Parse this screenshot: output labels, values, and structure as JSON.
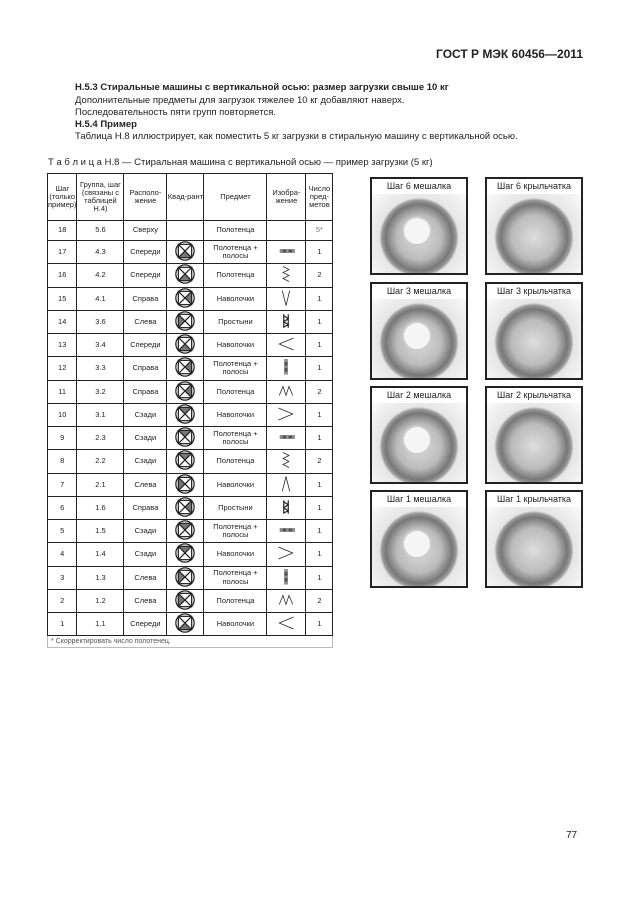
{
  "header": "ГОСТ Р МЭК 60456—2011",
  "body": {
    "h1": "Н.5.3 Стиральные машины с вертикальной осью: размер загрузки свыше 10 кг",
    "p1": "Дополнительные предметы для загрузок тяжелее 10 кг добавляют наверх.",
    "p2": "Последовательность пяти групп повторяется.",
    "h2": "Н.5.4 Пример",
    "p3": "Таблица   Н.8  иллюстрирует, как поместить 5 кг загрузки в стиральную машину с вертикальной осью."
  },
  "caption": "Т а б л и ц а   Н.8 — Стиральная машина с вертикальной осью — пример загрузки (5 кг)",
  "table": {
    "headers": [
      "Шаг (только пример)",
      "Группа, шаг (связаны с таблицей Н.4)",
      "Располо-жение",
      "Квад-рант",
      "Предмет",
      "Изобра-жение",
      "Число пред-метов"
    ],
    "rows": [
      {
        "step": "18",
        "group": "5.6",
        "loc": "Сверху",
        "quad": "none",
        "item": "Полотенца",
        "img": "none",
        "count": "5*"
      },
      {
        "step": "17",
        "group": "4.3",
        "loc": "Спереди",
        "quad": "front",
        "item": "Полотенца + полосы",
        "img": "strips-h",
        "count": "1"
      },
      {
        "step": "16",
        "group": "4.2",
        "loc": "Спереди",
        "quad": "front",
        "item": "Полотенца",
        "img": "zigzag-v",
        "count": "2"
      },
      {
        "step": "15",
        "group": "4.1",
        "loc": "Справа",
        "quad": "right",
        "item": "Наволочки",
        "img": "v",
        "count": "1"
      },
      {
        "step": "14",
        "group": "3.6",
        "loc": "Слева",
        "quad": "left",
        "item": "Простыни",
        "img": "spiral",
        "count": "1"
      },
      {
        "step": "13",
        "group": "3.4",
        "loc": "Спереди",
        "quad": "front",
        "item": "Наволочки",
        "img": "lt",
        "count": "1"
      },
      {
        "step": "12",
        "group": "3.3",
        "loc": "Справа",
        "quad": "right",
        "item": "Полотенца + полосы",
        "img": "strips-v",
        "count": "1"
      },
      {
        "step": "11",
        "group": "3.2",
        "loc": "Справа",
        "quad": "right",
        "item": "Полотенца",
        "img": "zigzag-h",
        "count": "2"
      },
      {
        "step": "10",
        "group": "3.1",
        "loc": "Сзади",
        "quad": "back",
        "item": "Наволочки",
        "img": "gt",
        "count": "1"
      },
      {
        "step": "9",
        "group": "2.3",
        "loc": "Сзади",
        "quad": "back",
        "item": "Полотенца + полосы",
        "img": "strips-h",
        "count": "1"
      },
      {
        "step": "8",
        "group": "2.2",
        "loc": "Сзади",
        "quad": "back",
        "item": "Полотенца",
        "img": "zigzag-v",
        "count": "2"
      },
      {
        "step": "7",
        "group": "2.1",
        "loc": "Слева",
        "quad": "left",
        "item": "Наволочки",
        "img": "caret",
        "count": "1"
      },
      {
        "step": "6",
        "group": "1.6",
        "loc": "Справа",
        "quad": "right",
        "item": "Простыни",
        "img": "spiral",
        "count": "1"
      },
      {
        "step": "5",
        "group": "1.5",
        "loc": "Сзади",
        "quad": "back",
        "item": "Полотенца + полосы",
        "img": "strips-h",
        "count": "1"
      },
      {
        "step": "4",
        "group": "1.4",
        "loc": "Сзади",
        "quad": "back",
        "item": "Наволочки",
        "img": "gt",
        "count": "1"
      },
      {
        "step": "3",
        "group": "1.3",
        "loc": "Слева",
        "quad": "left",
        "item": "Полотенца + полосы",
        "img": "strips-v",
        "count": "1"
      },
      {
        "step": "2",
        "group": "1.2",
        "loc": "Слева",
        "quad": "left",
        "item": "Полотенца",
        "img": "zigzag-h",
        "count": "2"
      },
      {
        "step": "1",
        "group": "1.1",
        "loc": "Спереди",
        "quad": "front",
        "item": "Наволочки",
        "img": "lt",
        "count": "1"
      }
    ],
    "footnote": "* Скорректировать число полотенец."
  },
  "photos": [
    {
      "label": "Шаг 6 мешалка",
      "hub": true
    },
    {
      "label": "Шаг 6 крыльчатка",
      "hub": false
    },
    {
      "label": "Шаг 3 мешалка",
      "hub": true
    },
    {
      "label": "Шаг 3 крыльчатка",
      "hub": false
    },
    {
      "label": "Шаг 2 мешалка",
      "hub": true
    },
    {
      "label": "Шаг 2 крыльчатка",
      "hub": false
    },
    {
      "label": "Шаг 1 мешалка",
      "hub": true
    },
    {
      "label": "Шаг 1 крыльчатка",
      "hub": false
    }
  ],
  "page_number": "77"
}
